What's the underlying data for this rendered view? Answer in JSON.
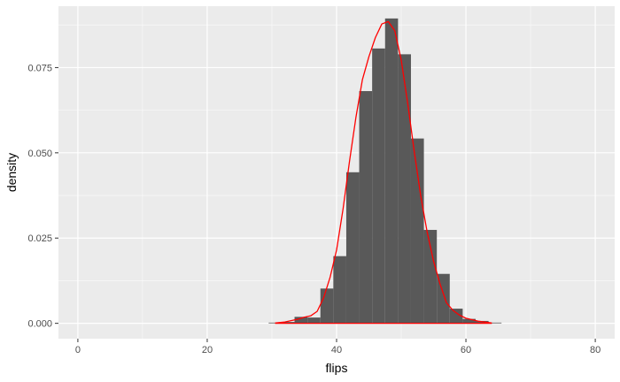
{
  "chart_data": {
    "type": "bar",
    "title": "",
    "xlabel": "flips",
    "ylabel": "density",
    "xlim": [
      -3,
      83
    ],
    "ylim": [
      -0.0045,
      0.093
    ],
    "x_ticks": [
      0,
      20,
      40,
      60,
      80
    ],
    "x_tick_labels": [
      "0",
      "20",
      "40",
      "60",
      "80"
    ],
    "y_ticks": [
      0.0,
      0.025,
      0.05,
      0.075
    ],
    "y_tick_labels": [
      "0.000",
      "0.025",
      "0.050",
      "0.075"
    ],
    "grid": true,
    "legend": "none",
    "histogram": {
      "bin_width": 2,
      "bins": [
        {
          "x0": 29.5,
          "x1": 31.5,
          "density": 0.0001
        },
        {
          "x0": 31.5,
          "x1": 33.5,
          "density": 0.0004
        },
        {
          "x0": 33.5,
          "x1": 35.5,
          "density": 0.0019
        },
        {
          "x0": 35.5,
          "x1": 37.5,
          "density": 0.0017
        },
        {
          "x0": 37.5,
          "x1": 39.5,
          "density": 0.0102
        },
        {
          "x0": 39.5,
          "x1": 41.5,
          "density": 0.0197
        },
        {
          "x0": 41.5,
          "x1": 43.5,
          "density": 0.0443
        },
        {
          "x0": 43.5,
          "x1": 45.5,
          "density": 0.0681
        },
        {
          "x0": 45.5,
          "x1": 47.5,
          "density": 0.0806
        },
        {
          "x0": 47.5,
          "x1": 49.5,
          "density": 0.0894
        },
        {
          "x0": 49.5,
          "x1": 51.5,
          "density": 0.0789
        },
        {
          "x0": 51.5,
          "x1": 53.5,
          "density": 0.0542
        },
        {
          "x0": 53.5,
          "x1": 55.5,
          "density": 0.0274
        },
        {
          "x0": 55.5,
          "x1": 57.5,
          "density": 0.0145
        },
        {
          "x0": 57.5,
          "x1": 59.5,
          "density": 0.0043
        },
        {
          "x0": 59.5,
          "x1": 61.5,
          "density": 0.0013
        },
        {
          "x0": 61.5,
          "x1": 63.5,
          "density": 0.0007
        },
        {
          "x0": 63.5,
          "x1": 65.5,
          "density": 0.0002
        }
      ]
    },
    "density_curve": {
      "x": [
        30.5,
        32,
        34,
        35,
        36,
        37,
        38,
        39,
        40,
        41,
        42,
        43,
        44,
        45,
        46,
        47,
        48,
        49,
        50,
        51,
        52,
        53,
        54,
        55,
        56,
        57,
        58,
        59,
        60,
        62,
        64
      ],
      "y": [
        0.0001,
        0.0004,
        0.0012,
        0.0018,
        0.0022,
        0.0035,
        0.0075,
        0.0135,
        0.0215,
        0.0335,
        0.0475,
        0.0605,
        0.0715,
        0.0782,
        0.0838,
        0.0878,
        0.0885,
        0.0858,
        0.0772,
        0.0645,
        0.0505,
        0.0375,
        0.0268,
        0.0182,
        0.0115,
        0.006,
        0.0038,
        0.0024,
        0.0015,
        0.0006,
        0.0001
      ]
    },
    "colors": {
      "panel": "#ebebeb",
      "grid_major": "#ffffff",
      "bar_fill": "#595959",
      "curve": "#ff0000",
      "tick": "#333333"
    }
  }
}
